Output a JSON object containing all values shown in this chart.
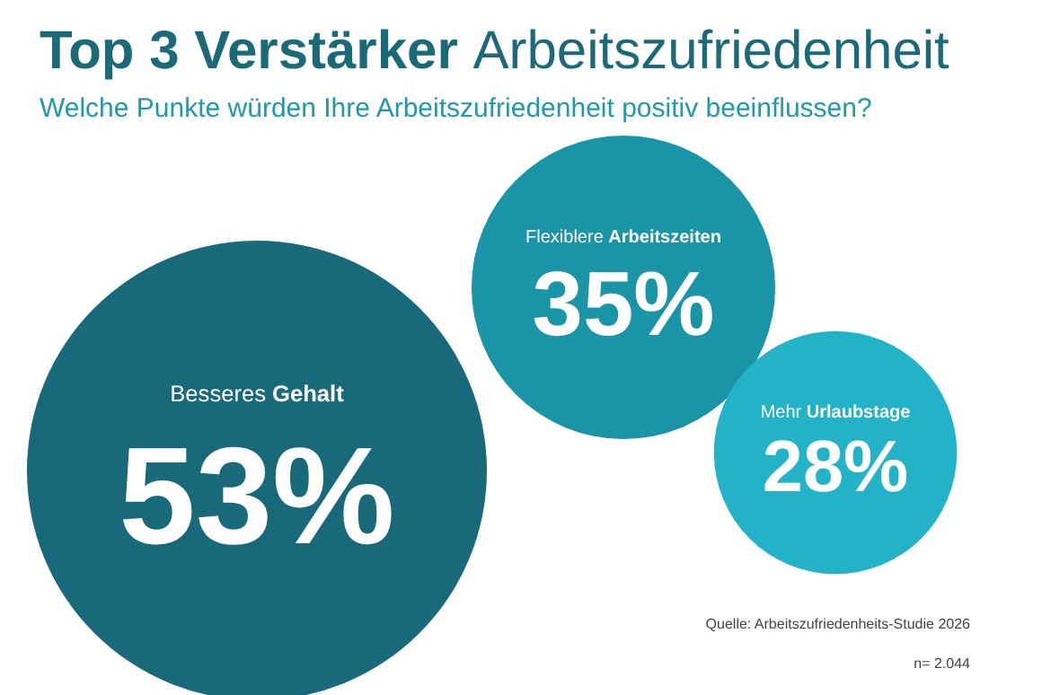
{
  "chart_data": {
    "type": "other",
    "title": "Top 3 Verstärker Arbeitszufriedenheit",
    "subtitle": "Welche Punkte würden Ihre Arbeitszufriedenheit positiv beeinflussen?",
    "categories": [
      "Besseres Gehalt",
      "Flexiblere Arbeitszeiten",
      "Mehr Urlaubstage"
    ],
    "values": [
      53,
      35,
      28
    ],
    "value_labels": [
      "53%",
      "35%",
      "28%"
    ],
    "colors": [
      "#18697a",
      "#1a95a8",
      "#22b3c8"
    ],
    "annotations": [
      "Quelle: Arbeitszufriedenheits-Studie 2026",
      "n= 2.044"
    ]
  }
}
